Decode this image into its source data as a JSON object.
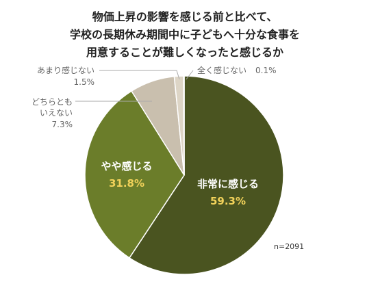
{
  "chart_data": {
    "type": "pie",
    "title_lines": [
      "物価上昇の影響を感じる前と比べて、",
      "学校の長期休み期間中に子どもへ十分な食事を",
      "用意することが難しくなったと感じるか"
    ],
    "slices": [
      {
        "label": "非常に感じる",
        "value_text": "59.3%",
        "value": 59.3,
        "color": "#4a5420"
      },
      {
        "label": "やや感じる",
        "value_text": "31.8%",
        "value": 31.8,
        "color": "#6b7d2a"
      },
      {
        "label_lines": [
          "どちらとも",
          "いえない"
        ],
        "value_text": "7.3%",
        "value": 7.3,
        "color": "#c9bfae"
      },
      {
        "label": "あまり感じない",
        "value_text": "1.5%",
        "value": 1.5,
        "color": "#ddd5c6"
      },
      {
        "label": "全く感じない",
        "value_text": "0.1%",
        "value": 0.1,
        "color": "#efe9df"
      }
    ],
    "inside_pct_color": "#f2d25a",
    "sample_size": "n=2091"
  }
}
